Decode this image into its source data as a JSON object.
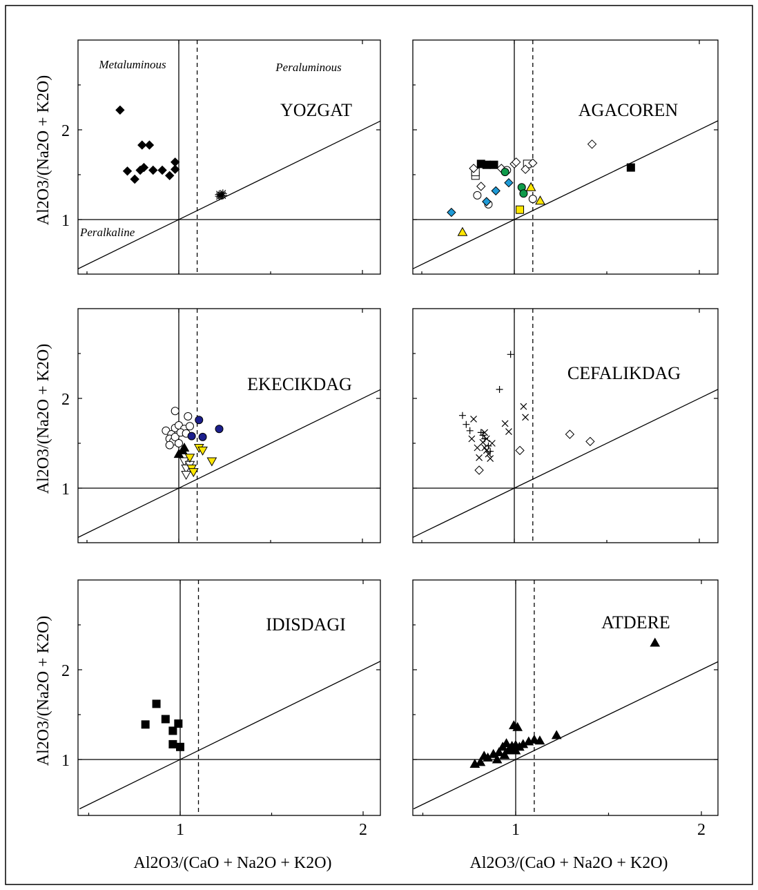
{
  "colors": {
    "black": "#000000",
    "white": "#ffffff",
    "cyan": "#1e9ad6",
    "green": "#0f9a4a",
    "yellow": "#ffe600",
    "navy": "#1c1f8c"
  },
  "chart_data": [
    {
      "type": "scatter",
      "title": "YOZGAT",
      "xlabel": "",
      "ylabel": "Al2O3/(Na2O + K2O)",
      "xlim": [
        0.45,
        2.1
      ],
      "ylim": [
        0.5,
        3.0
      ],
      "region_labels": [
        "Metaluminous",
        "Peraluminous",
        "Peralkaline"
      ],
      "series": [
        {
          "marker": "diamond",
          "fill": "black",
          "points": [
            [
              0.68,
              2.22
            ],
            [
              0.8,
              1.83
            ],
            [
              0.84,
              1.83
            ],
            [
              0.72,
              1.54
            ],
            [
              0.76,
              1.45
            ],
            [
              0.79,
              1.55
            ],
            [
              0.81,
              1.58
            ],
            [
              0.86,
              1.55
            ],
            [
              0.91,
              1.55
            ],
            [
              0.95,
              1.49
            ],
            [
              0.98,
              1.56
            ],
            [
              0.98,
              1.64
            ]
          ]
        },
        {
          "marker": "asterisk",
          "fill": "black",
          "points": [
            [
              1.22,
              1.28
            ],
            [
              1.23,
              1.27
            ],
            [
              1.24,
              1.29
            ],
            [
              1.22,
              1.26
            ],
            [
              1.24,
              1.27
            ]
          ]
        }
      ]
    },
    {
      "type": "scatter",
      "title": "AGACOREN",
      "xlabel": "",
      "ylabel": "",
      "xlim": [
        0.45,
        2.1
      ],
      "ylim": [
        0.5,
        3.0
      ],
      "series": [
        {
          "marker": "square",
          "fill": "black",
          "points": [
            [
              0.82,
              1.62
            ],
            [
              0.85,
              1.61
            ],
            [
              0.89,
              1.61
            ],
            [
              1.63,
              1.58
            ]
          ]
        },
        {
          "marker": "square",
          "fill": "white",
          "points": [
            [
              0.79,
              1.49
            ],
            [
              0.79,
              1.53
            ],
            [
              1.07,
              1.62
            ]
          ]
        },
        {
          "marker": "diamond",
          "fill": "white",
          "points": [
            [
              0.78,
              1.57
            ],
            [
              0.82,
              1.37
            ],
            [
              0.93,
              1.57
            ],
            [
              1.0,
              1.62
            ],
            [
              1.01,
              1.64
            ],
            [
              1.06,
              1.56
            ],
            [
              1.1,
              1.63
            ],
            [
              1.42,
              1.84
            ]
          ]
        },
        {
          "marker": "circle",
          "fill": "white",
          "points": [
            [
              0.8,
              1.27
            ],
            [
              0.86,
              1.17
            ],
            [
              0.96,
              1.55
            ],
            [
              1.1,
              1.23
            ]
          ]
        },
        {
          "marker": "diamond",
          "fill": "cyan",
          "points": [
            [
              0.66,
              1.08
            ],
            [
              0.85,
              1.2
            ],
            [
              0.9,
              1.32
            ],
            [
              0.97,
              1.41
            ]
          ]
        },
        {
          "marker": "circle",
          "fill": "green",
          "points": [
            [
              0.95,
              1.53
            ],
            [
              1.04,
              1.36
            ],
            [
              1.05,
              1.29
            ]
          ]
        },
        {
          "marker": "triangle",
          "fill": "yellow",
          "points": [
            [
              0.72,
              0.86
            ],
            [
              1.09,
              1.36
            ],
            [
              1.14,
              1.21
            ]
          ]
        },
        {
          "marker": "square",
          "fill": "yellow",
          "points": [
            [
              1.03,
              1.11
            ]
          ]
        }
      ]
    },
    {
      "type": "scatter",
      "title": "EKECIKDAG",
      "xlabel": "",
      "ylabel": "Al2O3/(Na2O + K2O)",
      "xlim": [
        0.45,
        2.1
      ],
      "ylim": [
        0.5,
        3.0
      ],
      "series": [
        {
          "marker": "circle",
          "fill": "white",
          "points": [
            [
              0.98,
              1.86
            ],
            [
              1.05,
              1.8
            ],
            [
              0.93,
              1.64
            ],
            [
              0.96,
              1.6
            ],
            [
              0.98,
              1.67
            ],
            [
              1.0,
              1.7
            ],
            [
              1.03,
              1.66
            ],
            [
              1.06,
              1.69
            ],
            [
              0.95,
              1.55
            ],
            [
              0.97,
              1.52
            ],
            [
              0.98,
              1.57
            ],
            [
              1.01,
              1.62
            ],
            [
              1.04,
              1.61
            ],
            [
              0.95,
              1.48
            ],
            [
              1.0,
              1.5
            ]
          ]
        },
        {
          "marker": "circle",
          "fill": "navy",
          "points": [
            [
              1.11,
              1.76
            ],
            [
              1.07,
              1.58
            ],
            [
              1.13,
              1.57
            ],
            [
              1.22,
              1.66
            ]
          ]
        },
        {
          "marker": "triangle",
          "fill": "black",
          "points": [
            [
              1.0,
              1.38
            ],
            [
              1.02,
              1.42
            ],
            [
              1.03,
              1.45
            ]
          ]
        },
        {
          "marker": "triangle-down",
          "fill": "white",
          "points": [
            [
              1.03,
              1.3
            ],
            [
              1.04,
              1.22
            ],
            [
              1.06,
              1.26
            ],
            [
              1.04,
              1.15
            ]
          ]
        },
        {
          "marker": "triangle-down",
          "fill": "yellow",
          "points": [
            [
              1.06,
              1.34
            ],
            [
              1.07,
              1.22
            ],
            [
              1.08,
              1.18
            ],
            [
              1.11,
              1.45
            ],
            [
              1.13,
              1.42
            ],
            [
              1.18,
              1.3
            ]
          ]
        }
      ]
    },
    {
      "type": "scatter",
      "title": "CEFALIKDAG",
      "xlabel": "",
      "ylabel": "",
      "xlim": [
        0.45,
        2.1
      ],
      "ylim": [
        0.5,
        3.0
      ],
      "series": [
        {
          "marker": "plus",
          "fill": "black",
          "points": [
            [
              0.98,
              2.49
            ],
            [
              0.92,
              2.1
            ],
            [
              0.72,
              1.81
            ],
            [
              0.74,
              1.71
            ],
            [
              0.76,
              1.64
            ],
            [
              0.82,
              1.62
            ],
            [
              0.83,
              1.59
            ],
            [
              0.84,
              1.55
            ],
            [
              0.86,
              1.47
            ],
            [
              0.87,
              1.41
            ]
          ]
        },
        {
          "marker": "cross",
          "fill": "black",
          "points": [
            [
              0.78,
              1.77
            ],
            [
              0.77,
              1.55
            ],
            [
              0.8,
              1.45
            ],
            [
              0.81,
              1.34
            ],
            [
              0.83,
              1.51
            ],
            [
              0.84,
              1.45
            ],
            [
              0.85,
              1.42
            ],
            [
              0.86,
              1.38
            ],
            [
              0.87,
              1.33
            ],
            [
              0.88,
              1.5
            ],
            [
              0.85,
              1.55
            ],
            [
              0.84,
              1.62
            ],
            [
              0.95,
              1.72
            ],
            [
              0.97,
              1.63
            ],
            [
              1.05,
              1.91
            ],
            [
              1.06,
              1.79
            ]
          ]
        },
        {
          "marker": "diamond",
          "fill": "white",
          "points": [
            [
              0.81,
              1.2
            ],
            [
              1.03,
              1.42
            ],
            [
              1.3,
              1.6
            ],
            [
              1.41,
              1.52
            ]
          ]
        }
      ]
    },
    {
      "type": "scatter",
      "title": "IDISDAGI",
      "xlabel": "Al2O3/(CaO + Na2O + K2O)",
      "ylabel": "Al2O3/(Na2O + K2O)",
      "xlim": [
        0.45,
        2.1
      ],
      "ylim": [
        0.5,
        3.0
      ],
      "xticks": [
        "1",
        "2"
      ],
      "yticks": [
        "1",
        "2"
      ],
      "series": [
        {
          "marker": "square",
          "fill": "black",
          "points": [
            [
              0.87,
              1.62
            ],
            [
              0.81,
              1.39
            ],
            [
              0.92,
              1.45
            ],
            [
              0.96,
              1.32
            ],
            [
              0.99,
              1.4
            ],
            [
              0.96,
              1.17
            ],
            [
              1.0,
              1.14
            ]
          ]
        }
      ]
    },
    {
      "type": "scatter",
      "title": "ATDERE",
      "xlabel": "Al2O3/(CaO + Na2O + K2O)",
      "ylabel": "",
      "xlim": [
        0.45,
        2.1
      ],
      "ylim": [
        0.5,
        3.0
      ],
      "xticks": [
        "1",
        "2"
      ],
      "series": [
        {
          "marker": "triangle",
          "fill": "black",
          "points": [
            [
              1.75,
              2.3
            ],
            [
              1.22,
              1.27
            ],
            [
              0.99,
              1.38
            ],
            [
              1.01,
              1.36
            ],
            [
              0.88,
              1.06
            ],
            [
              0.91,
              1.08
            ],
            [
              0.93,
              1.14
            ],
            [
              0.95,
              1.18
            ],
            [
              0.97,
              1.12
            ],
            [
              0.98,
              1.15
            ],
            [
              1.0,
              1.1
            ],
            [
              1.02,
              1.14
            ],
            [
              1.04,
              1.17
            ],
            [
              1.07,
              1.2
            ],
            [
              1.1,
              1.22
            ],
            [
              1.13,
              1.21
            ],
            [
              0.83,
              1.04
            ],
            [
              0.85,
              1.02
            ],
            [
              0.78,
              0.95
            ],
            [
              0.81,
              0.97
            ],
            [
              0.9,
              1.0
            ],
            [
              0.94,
              1.05
            ],
            [
              0.96,
              1.1
            ],
            [
              1.0,
              1.16
            ]
          ]
        }
      ]
    }
  ]
}
